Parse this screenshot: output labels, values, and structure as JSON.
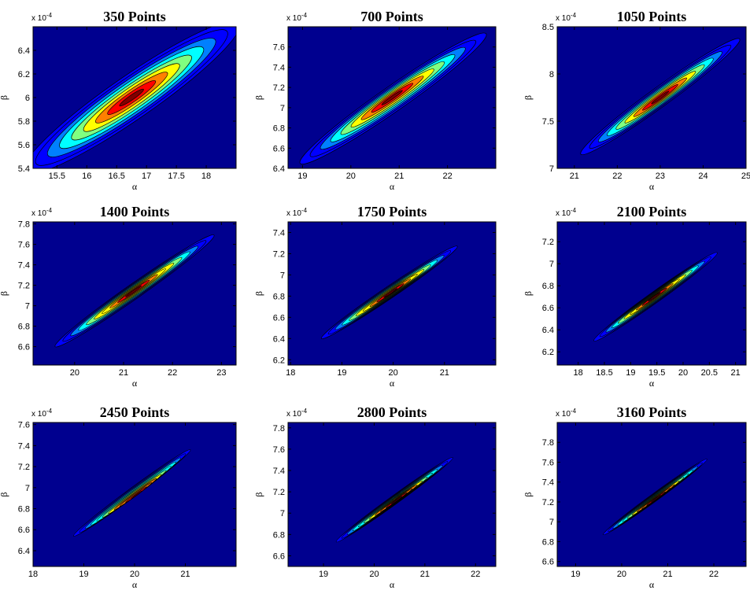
{
  "colors": {
    "background": "#00008f",
    "contour_line": "#000000",
    "colormap": [
      "#00008f",
      "#0000ff",
      "#0080ff",
      "#00ffff",
      "#80ff80",
      "#ffff00",
      "#ff8000",
      "#ff0000",
      "#800000"
    ]
  },
  "chart_data": [
    {
      "type": "contour",
      "title": "350 Points",
      "xlabel": "α",
      "ylabel": "β",
      "exponent_label": "x 10",
      "exponent_power": "-4",
      "xlim": [
        15.1,
        18.5
      ],
      "ylim": [
        5.4,
        6.6
      ],
      "xticks": [
        15.5,
        16,
        16.5,
        17,
        17.5,
        18
      ],
      "xticklabels": [
        "15.5",
        "16",
        "16.5",
        "17",
        "17.5",
        "18"
      ],
      "yticks": [
        5.4,
        5.6,
        5.8,
        6,
        6.2,
        6.4
      ],
      "yticklabels": [
        "5.4",
        "5.6",
        "5.8",
        "6",
        "6.2",
        "6.4"
      ],
      "center": [
        16.75,
        6.0
      ],
      "outer_ends": [
        [
          14.95,
          5.37
        ],
        [
          18.55,
          6.63
        ]
      ],
      "outer_halfwidth": 0.075,
      "levels": 9
    },
    {
      "type": "contour",
      "title": "700 Points",
      "xlabel": "α",
      "ylabel": "β",
      "exponent_label": "x 10",
      "exponent_power": "-4",
      "xlim": [
        18.7,
        23.0
      ],
      "ylim": [
        6.4,
        7.8
      ],
      "xticks": [
        19,
        20,
        21,
        22
      ],
      "xticklabels": [
        "19",
        "20",
        "21",
        "22"
      ],
      "yticks": [
        6.4,
        6.6,
        6.8,
        7,
        7.2,
        7.4,
        7.6
      ],
      "yticklabels": [
        "6.4",
        "6.6",
        "6.8",
        "7",
        "7.2",
        "7.4",
        "7.6"
      ],
      "center": [
        20.85,
        7.1
      ],
      "outer_ends": [
        [
          18.95,
          6.45
        ],
        [
          22.8,
          7.73
        ]
      ],
      "outer_halfwidth": 0.05,
      "levels": 9
    },
    {
      "type": "contour",
      "title": "1050 Points",
      "xlabel": "α",
      "ylabel": "β",
      "exponent_label": "x 10",
      "exponent_power": "-4",
      "xlim": [
        20.6,
        25.0
      ],
      "ylim": [
        7.0,
        8.5
      ],
      "xticks": [
        21,
        22,
        23,
        24,
        25
      ],
      "xticklabels": [
        "21",
        "22",
        "23",
        "24",
        "25"
      ],
      "yticks": [
        7,
        7.5,
        8,
        8.5
      ],
      "yticklabels": [
        "7",
        "7.5",
        "8",
        "8.5"
      ],
      "center": [
        23.0,
        7.75
      ],
      "outer_ends": [
        [
          21.15,
          7.15
        ],
        [
          24.85,
          8.37
        ]
      ],
      "outer_halfwidth": 0.045,
      "levels": 9
    },
    {
      "type": "contour",
      "title": "1400 Points",
      "xlabel": "α",
      "ylabel": "β",
      "exponent_label": "x 10",
      "exponent_power": "-4",
      "xlim": [
        19.15,
        23.3
      ],
      "ylim": [
        6.42,
        7.82
      ],
      "xticks": [
        20,
        21,
        22,
        23
      ],
      "xticklabels": [
        "20",
        "21",
        "22",
        "23"
      ],
      "yticks": [
        6.6,
        6.8,
        7,
        7.2,
        7.4,
        7.6,
        7.8
      ],
      "yticklabels": [
        "6.6",
        "6.8",
        "7",
        "7.2",
        "7.4",
        "7.6",
        "7.8"
      ],
      "center": [
        21.2,
        7.14
      ],
      "outer_ends": [
        [
          19.6,
          6.6
        ],
        [
          22.85,
          7.69
        ]
      ],
      "outer_halfwidth": 0.035,
      "levels": 10
    },
    {
      "type": "contour",
      "title": "1750 Points",
      "xlabel": "α",
      "ylabel": "β",
      "exponent_label": "x 10",
      "exponent_power": "-4",
      "xlim": [
        17.95,
        22.0
      ],
      "ylim": [
        6.15,
        7.5
      ],
      "xticks": [
        18,
        19,
        20,
        21
      ],
      "xticklabels": [
        "18",
        "19",
        "20",
        "21"
      ],
      "yticks": [
        6.2,
        6.4,
        6.6,
        6.8,
        7,
        7.2,
        7.4
      ],
      "yticklabels": [
        "6.2",
        "6.4",
        "6.6",
        "6.8",
        "7",
        "7.2",
        "7.4"
      ],
      "center": [
        19.95,
        6.83
      ],
      "outer_ends": [
        [
          18.6,
          6.4
        ],
        [
          21.25,
          7.27
        ]
      ],
      "outer_halfwidth": 0.033,
      "levels": 10
    },
    {
      "type": "contour",
      "title": "2100 Points",
      "xlabel": "α",
      "ylabel": "β",
      "exponent_label": "x 10",
      "exponent_power": "-4",
      "xlim": [
        17.6,
        21.2
      ],
      "ylim": [
        6.08,
        7.38
      ],
      "xticks": [
        18,
        18.5,
        19,
        19.5,
        20,
        20.5,
        21
      ],
      "xticklabels": [
        "18",
        "18.5",
        "19",
        "19.5",
        "20",
        "20.5",
        "21"
      ],
      "yticks": [
        6.2,
        6.4,
        6.6,
        6.8,
        7,
        7.2
      ],
      "yticklabels": [
        "6.2",
        "6.4",
        "6.6",
        "6.8",
        "7",
        "7.2"
      ],
      "center": [
        19.45,
        6.7
      ],
      "outer_ends": [
        [
          18.3,
          6.3
        ],
        [
          20.65,
          7.1
        ]
      ],
      "outer_halfwidth": 0.033,
      "levels": 10
    },
    {
      "type": "contour",
      "title": "2450 Points",
      "xlabel": "α",
      "ylabel": "β",
      "exponent_label": "x 10",
      "exponent_power": "-4",
      "xlim": [
        18.0,
        22.0
      ],
      "ylim": [
        6.25,
        7.62
      ],
      "xticks": [
        18,
        19,
        20,
        21
      ],
      "xticklabels": [
        "18",
        "19",
        "20",
        "21"
      ],
      "yticks": [
        6.4,
        6.6,
        6.8,
        7,
        7.2,
        7.4,
        7.6
      ],
      "yticklabels": [
        "6.4",
        "6.6",
        "6.8",
        "7",
        "7.2",
        "7.4",
        "7.6"
      ],
      "center": [
        20.05,
        6.93
      ],
      "outer_ends": [
        [
          18.8,
          6.54
        ],
        [
          21.1,
          7.36
        ]
      ],
      "outer_halfwidth": 0.028,
      "levels": 11
    },
    {
      "type": "contour",
      "title": "2800 Points",
      "xlabel": "α",
      "ylabel": "β",
      "exponent_label": "x 10",
      "exponent_power": "-4",
      "xlim": [
        18.3,
        22.4
      ],
      "ylim": [
        6.5,
        7.85
      ],
      "xticks": [
        19,
        20,
        21,
        22
      ],
      "xticklabels": [
        "19",
        "20",
        "21",
        "22"
      ],
      "yticks": [
        6.6,
        6.8,
        7,
        7.2,
        7.4,
        7.6,
        7.8
      ],
      "yticklabels": [
        "6.6",
        "6.8",
        "7",
        "7.2",
        "7.4",
        "7.6",
        "7.8"
      ],
      "center": [
        20.45,
        7.12
      ],
      "outer_ends": [
        [
          19.25,
          6.73
        ],
        [
          21.55,
          7.52
        ]
      ],
      "outer_halfwidth": 0.027,
      "levels": 11
    },
    {
      "type": "contour",
      "title": "3160 Points",
      "xlabel": "α",
      "ylabel": "β",
      "exponent_label": "x 10",
      "exponent_power": "-4",
      "xlim": [
        18.6,
        22.7
      ],
      "ylim": [
        6.55,
        8.0
      ],
      "xticks": [
        19,
        20,
        21,
        22
      ],
      "xticklabels": [
        "19",
        "20",
        "21",
        "22"
      ],
      "yticks": [
        6.6,
        6.8,
        7,
        7.2,
        7.4,
        7.6,
        7.8
      ],
      "yticklabels": [
        "6.6",
        "6.8",
        "7",
        "7.2",
        "7.4",
        "7.6",
        "7.8"
      ],
      "center": [
        20.75,
        7.23
      ],
      "outer_ends": [
        [
          19.6,
          6.87
        ],
        [
          21.85,
          7.63
        ]
      ],
      "outer_halfwidth": 0.027,
      "levels": 11
    }
  ]
}
